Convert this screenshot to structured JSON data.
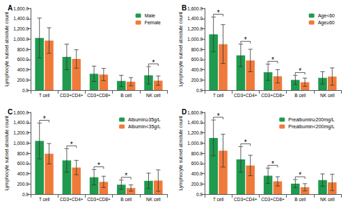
{
  "chart_data": [
    {
      "type": "bar",
      "title": "A",
      "ylabel": "Lymphocyte subset absolute count",
      "categories": [
        "T cell",
        "CD3+CD4+",
        "CD3+CD8+",
        "B cell",
        "NK cell"
      ],
      "series": [
        {
          "name": "Male",
          "color": "#1f9a4e",
          "values": [
            1020,
            650,
            320,
            180,
            290
          ],
          "errors": [
            390,
            250,
            150,
            110,
            170
          ]
        },
        {
          "name": "Female",
          "color": "#f07a3a",
          "values": [
            970,
            610,
            305,
            165,
            185
          ],
          "errors": [
            250,
            180,
            120,
            80,
            90
          ]
        }
      ],
      "ylim": [
        0,
        1600
      ],
      "yticks": [
        {
          "value": 0,
          "label": "0.0"
        },
        {
          "value": 200,
          "label": "200.0"
        },
        {
          "value": 400,
          "label": "400.0"
        },
        {
          "value": 600,
          "label": "600.0"
        },
        {
          "value": 800,
          "label": "800.0"
        },
        {
          "value": 1000,
          "label": "1,000.0"
        },
        {
          "value": 1200,
          "label": "1,200.0"
        },
        {
          "value": 1400,
          "label": "1,400.0"
        },
        {
          "value": 1600,
          "label": "1,600.0"
        }
      ],
      "grid": false,
      "legend": "top-right",
      "annotations": [
        {
          "category": "NK cell",
          "text": "*"
        }
      ]
    },
    {
      "type": "bar",
      "title": "B",
      "ylabel": "Lymphocyte subset absolute count",
      "categories": [
        "T cell",
        "CD3+CD4+",
        "CD3+CD8+",
        "B cell",
        "NK cell"
      ],
      "series": [
        {
          "name": "Age<60",
          "color": "#1f9a4e",
          "values": [
            1090,
            680,
            350,
            200,
            240
          ],
          "errors": [
            340,
            220,
            160,
            90,
            120
          ]
        },
        {
          "name": "Age≥60",
          "color": "#f07a3a",
          "values": [
            900,
            580,
            270,
            155,
            265
          ],
          "errors": [
            380,
            220,
            130,
            80,
            170
          ]
        }
      ],
      "ylim": [
        0,
        1600
      ],
      "yticks": [
        {
          "value": 0,
          "label": "0.0"
        },
        {
          "value": 200,
          "label": "200.0"
        },
        {
          "value": 400,
          "label": "400.0"
        },
        {
          "value": 600,
          "label": "600.0"
        },
        {
          "value": 800,
          "label": "800.0"
        },
        {
          "value": 1000,
          "label": "1,000.0"
        },
        {
          "value": 1200,
          "label": "1,200.0"
        },
        {
          "value": 1400,
          "label": "1,400.0"
        },
        {
          "value": 1600,
          "label": "1,600.0"
        }
      ],
      "grid": false,
      "legend": "top-right",
      "annotations": [
        {
          "category": "T cell",
          "text": "*"
        },
        {
          "category": "CD3+CD4+",
          "text": "*"
        },
        {
          "category": "CD3+CD8+",
          "text": "*"
        },
        {
          "category": "B cell",
          "text": "*"
        }
      ]
    },
    {
      "type": "bar",
      "title": "C",
      "ylabel": "Lymphocyte subset absolute count",
      "categories": [
        "T cell",
        "CD3+CD4+",
        "CD3+CD8+",
        "B cell",
        "NK cell"
      ],
      "series": [
        {
          "name": "Albumin≥35g/L",
          "color": "#1f9a4e",
          "values": [
            1040,
            660,
            330,
            185,
            260
          ],
          "errors": [
            350,
            230,
            150,
            90,
            150
          ]
        },
        {
          "name": "Albumin<35g/L",
          "color": "#f07a3a",
          "values": [
            790,
            520,
            240,
            120,
            265
          ],
          "errors": [
            200,
            140,
            110,
            60,
            210
          ]
        }
      ],
      "ylim": [
        0,
        1600
      ],
      "yticks": [
        {
          "value": 0,
          "label": "0.0"
        },
        {
          "value": 200,
          "label": "200.0"
        },
        {
          "value": 400,
          "label": "400.0"
        },
        {
          "value": 600,
          "label": "600.0"
        },
        {
          "value": 800,
          "label": "800.0"
        },
        {
          "value": 1000,
          "label": "1,000.0"
        },
        {
          "value": 1200,
          "label": "1,200.0"
        },
        {
          "value": 1400,
          "label": "1,400.0"
        },
        {
          "value": 1600,
          "label": "1,600.0"
        }
      ],
      "grid": false,
      "legend": "top-right",
      "annotations": [
        {
          "category": "T cell",
          "text": "*"
        },
        {
          "category": "CD3+CD4+",
          "text": "*"
        },
        {
          "category": "CD3+CD8+",
          "text": "*"
        },
        {
          "category": "B cell",
          "text": "*"
        }
      ]
    },
    {
      "type": "bar",
      "title": "D",
      "ylabel": "Lymphocyte subset absolute count",
      "categories": [
        "T cell",
        "CD3+CD4+",
        "CD3+CD8+",
        "B cell",
        "NK cell"
      ],
      "series": [
        {
          "name": "Prealbumin≥200mg/L",
          "color": "#1f9a4e",
          "values": [
            1100,
            680,
            360,
            205,
            275
          ],
          "errors": [
            350,
            250,
            150,
            80,
            120
          ]
        },
        {
          "name": "Prealbumin<200mg/L",
          "color": "#f07a3a",
          "values": [
            850,
            560,
            250,
            135,
            230
          ],
          "errors": [
            320,
            200,
            90,
            70,
            160
          ]
        }
      ],
      "ylim": [
        0,
        1600
      ],
      "yticks": [
        {
          "value": 0,
          "label": "0.0"
        },
        {
          "value": 200,
          "label": "200.0"
        },
        {
          "value": 400,
          "label": "400.0"
        },
        {
          "value": 600,
          "label": "600.0"
        },
        {
          "value": 800,
          "label": "800.0"
        },
        {
          "value": 1000,
          "label": "1,000.0"
        },
        {
          "value": 1200,
          "label": "1,200.0"
        },
        {
          "value": 1400,
          "label": "1,400.0"
        },
        {
          "value": 1600,
          "label": "1,600.0"
        }
      ],
      "grid": false,
      "legend": "top-right",
      "annotations": [
        {
          "category": "T cell",
          "text": "*"
        },
        {
          "category": "CD3+CD4+",
          "text": "*"
        },
        {
          "category": "CD3+CD8+",
          "text": "*"
        },
        {
          "category": "B cell",
          "text": "*"
        }
      ]
    }
  ]
}
